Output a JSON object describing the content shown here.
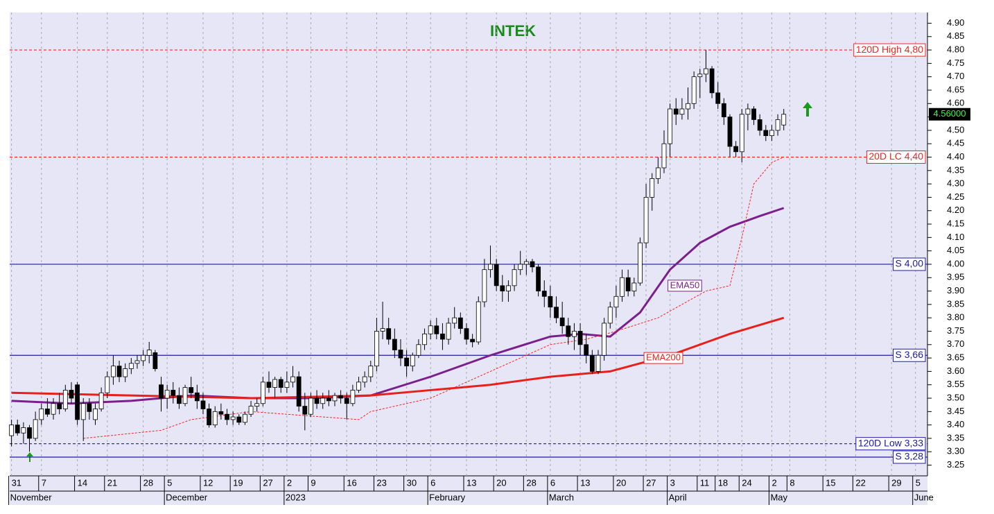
{
  "chart_data": {
    "type": "candlestick",
    "title": "INTEK",
    "ylim": [
      3.21,
      4.94
    ],
    "yticks": [
      {
        "value": 3.25,
        "label": "3.25"
      },
      {
        "value": 3.3,
        "label": "3.30"
      },
      {
        "value": 3.35,
        "label": "3.35"
      },
      {
        "value": 3.4,
        "label": "3.40"
      },
      {
        "value": 3.45,
        "label": "3.45"
      },
      {
        "value": 3.5,
        "label": "3.50"
      },
      {
        "value": 3.55,
        "label": "3.55"
      },
      {
        "value": 3.6,
        "label": "3.60"
      },
      {
        "value": 3.65,
        "label": "3.65"
      },
      {
        "value": 3.7,
        "label": "3.70"
      },
      {
        "value": 3.75,
        "label": "3.75"
      },
      {
        "value": 3.8,
        "label": "3.80"
      },
      {
        "value": 3.85,
        "label": "3.85"
      },
      {
        "value": 3.9,
        "label": "3.90"
      },
      {
        "value": 3.95,
        "label": "3.95"
      },
      {
        "value": 4.0,
        "label": "4.00"
      },
      {
        "value": 4.05,
        "label": "4.05"
      },
      {
        "value": 4.1,
        "label": "4.10"
      },
      {
        "value": 4.15,
        "label": "4.15"
      },
      {
        "value": 4.2,
        "label": "4.20"
      },
      {
        "value": 4.25,
        "label": "4.25"
      },
      {
        "value": 4.3,
        "label": "4.30"
      },
      {
        "value": 4.35,
        "label": "4.35"
      },
      {
        "value": 4.4,
        "label": "4.40"
      },
      {
        "value": 4.45,
        "label": "4.45"
      },
      {
        "value": 4.5,
        "label": "4.50"
      },
      {
        "value": 4.55,
        "label": "4.55"
      },
      {
        "value": 4.6,
        "label": "4.60"
      },
      {
        "value": 4.65,
        "label": "4.65"
      },
      {
        "value": 4.7,
        "label": "4.70"
      },
      {
        "value": 4.75,
        "label": "4.75"
      },
      {
        "value": 4.8,
        "label": "4.80"
      },
      {
        "value": 4.85,
        "label": "4.85"
      },
      {
        "value": 4.9,
        "label": "4.90"
      }
    ],
    "xlim": [
      -0.3,
      153
    ],
    "xticks": [
      {
        "value": 0,
        "label": "31"
      },
      {
        "value": 5,
        "label": "7"
      },
      {
        "value": 11,
        "label": "14"
      },
      {
        "value": 16,
        "label": "21"
      },
      {
        "value": 22,
        "label": "28"
      },
      {
        "value": 26,
        "label": "5"
      },
      {
        "value": 32,
        "label": "12"
      },
      {
        "value": 37,
        "label": "19"
      },
      {
        "value": 42,
        "label": "27"
      },
      {
        "value": 46,
        "label": "2"
      },
      {
        "value": 50,
        "label": "9"
      },
      {
        "value": 56,
        "label": "16"
      },
      {
        "value": 61,
        "label": "23"
      },
      {
        "value": 66,
        "label": "30"
      },
      {
        "value": 70,
        "label": "6"
      },
      {
        "value": 76,
        "label": "13"
      },
      {
        "value": 81,
        "label": "20"
      },
      {
        "value": 86,
        "label": "28"
      },
      {
        "value": 90,
        "label": "6"
      },
      {
        "value": 95,
        "label": "13"
      },
      {
        "value": 101,
        "label": "20"
      },
      {
        "value": 106,
        "label": "27"
      },
      {
        "value": 110,
        "label": "3"
      },
      {
        "value": 115,
        "label": "11"
      },
      {
        "value": 118,
        "label": "18"
      },
      {
        "value": 122,
        "label": "24"
      },
      {
        "value": 127,
        "label": "2"
      },
      {
        "value": 130,
        "label": "8"
      },
      {
        "value": 136,
        "label": "15"
      },
      {
        "value": 141,
        "label": "22"
      },
      {
        "value": 147,
        "label": "29"
      },
      {
        "value": 151,
        "label": "5"
      }
    ],
    "month_ticks": [
      {
        "value": 0,
        "label": "November"
      },
      {
        "value": 26,
        "label": "December"
      },
      {
        "value": 46,
        "label": "2023"
      },
      {
        "value": 70,
        "label": "February"
      },
      {
        "value": 90,
        "label": "March"
      },
      {
        "value": 110,
        "label": "April"
      },
      {
        "value": 127,
        "label": "May"
      },
      {
        "value": 151,
        "label": "June"
      }
    ],
    "ohlc": [
      [
        3.36,
        3.42,
        3.32,
        3.4
      ],
      [
        3.4,
        3.42,
        3.36,
        3.37
      ],
      [
        3.37,
        3.41,
        3.33,
        3.39
      ],
      [
        3.39,
        3.4,
        3.3,
        3.35
      ],
      [
        3.35,
        3.45,
        3.34,
        3.42
      ],
      [
        3.42,
        3.48,
        3.4,
        3.46
      ],
      [
        3.46,
        3.5,
        3.43,
        3.44
      ],
      [
        3.44,
        3.5,
        3.42,
        3.48
      ],
      [
        3.48,
        3.52,
        3.44,
        3.46
      ],
      [
        3.46,
        3.55,
        3.45,
        3.53
      ],
      [
        3.53,
        3.56,
        3.48,
        3.5
      ],
      [
        3.55,
        3.56,
        3.4,
        3.42
      ],
      [
        3.42,
        3.5,
        3.34,
        3.48
      ],
      [
        3.48,
        3.5,
        3.42,
        3.45
      ],
      [
        3.42,
        3.48,
        3.4,
        3.46
      ],
      [
        3.46,
        3.54,
        3.45,
        3.52
      ],
      [
        3.52,
        3.6,
        3.5,
        3.58
      ],
      [
        3.58,
        3.66,
        3.55,
        3.62
      ],
      [
        3.62,
        3.64,
        3.56,
        3.58
      ],
      [
        3.58,
        3.63,
        3.56,
        3.61
      ],
      [
        3.61,
        3.65,
        3.59,
        3.63
      ],
      [
        3.63,
        3.66,
        3.61,
        3.64
      ],
      [
        3.64,
        3.68,
        3.62,
        3.66
      ],
      [
        3.66,
        3.71,
        3.63,
        3.68
      ],
      [
        3.67,
        3.68,
        3.6,
        3.61
      ],
      [
        3.55,
        3.58,
        3.45,
        3.5
      ],
      [
        3.5,
        3.55,
        3.46,
        3.53
      ],
      [
        3.53,
        3.56,
        3.48,
        3.51
      ],
      [
        3.51,
        3.54,
        3.46,
        3.48
      ],
      [
        3.48,
        3.55,
        3.47,
        3.54
      ],
      [
        3.54,
        3.58,
        3.5,
        3.52
      ],
      [
        3.52,
        3.55,
        3.46,
        3.49
      ],
      [
        3.49,
        3.52,
        3.44,
        3.46
      ],
      [
        3.46,
        3.48,
        3.39,
        3.4
      ],
      [
        3.4,
        3.47,
        3.39,
        3.45
      ],
      [
        3.45,
        3.48,
        3.42,
        3.44
      ],
      [
        3.44,
        3.46,
        3.4,
        3.42
      ],
      [
        3.42,
        3.45,
        3.4,
        3.43
      ],
      [
        3.43,
        3.44,
        3.4,
        3.41
      ],
      [
        3.41,
        3.45,
        3.4,
        3.44
      ],
      [
        3.44,
        3.49,
        3.43,
        3.47
      ],
      [
        3.47,
        3.5,
        3.45,
        3.48
      ],
      [
        3.48,
        3.58,
        3.47,
        3.56
      ],
      [
        3.56,
        3.6,
        3.52,
        3.54
      ],
      [
        3.54,
        3.58,
        3.5,
        3.57
      ],
      [
        3.57,
        3.58,
        3.52,
        3.54
      ],
      [
        3.54,
        3.6,
        3.52,
        3.56
      ],
      [
        3.56,
        3.62,
        3.54,
        3.58
      ],
      [
        3.58,
        3.6,
        3.45,
        3.47
      ],
      [
        3.47,
        3.52,
        3.38,
        3.44
      ],
      [
        3.44,
        3.52,
        3.43,
        3.5
      ],
      [
        3.5,
        3.53,
        3.46,
        3.48
      ],
      [
        3.48,
        3.52,
        3.46,
        3.5
      ],
      [
        3.5,
        3.53,
        3.47,
        3.49
      ],
      [
        3.49,
        3.52,
        3.47,
        3.51
      ],
      [
        3.51,
        3.53,
        3.48,
        3.5
      ],
      [
        3.5,
        3.52,
        3.42,
        3.48
      ],
      [
        3.48,
        3.55,
        3.47,
        3.53
      ],
      [
        3.53,
        3.58,
        3.52,
        3.56
      ],
      [
        3.56,
        3.6,
        3.54,
        3.58
      ],
      [
        3.58,
        3.64,
        3.56,
        3.62
      ],
      [
        3.62,
        3.8,
        3.6,
        3.75
      ],
      [
        3.75,
        3.86,
        3.72,
        3.76
      ],
      [
        3.76,
        3.8,
        3.7,
        3.72
      ],
      [
        3.72,
        3.76,
        3.65,
        3.68
      ],
      [
        3.68,
        3.72,
        3.62,
        3.65
      ],
      [
        3.65,
        3.68,
        3.58,
        3.62
      ],
      [
        3.62,
        3.67,
        3.6,
        3.66
      ],
      [
        3.66,
        3.72,
        3.65,
        3.7
      ],
      [
        3.7,
        3.76,
        3.68,
        3.74
      ],
      [
        3.74,
        3.79,
        3.72,
        3.77
      ],
      [
        3.77,
        3.8,
        3.72,
        3.74
      ],
      [
        3.74,
        3.78,
        3.68,
        3.72
      ],
      [
        3.72,
        3.8,
        3.7,
        3.78
      ],
      [
        3.78,
        3.84,
        3.76,
        3.8
      ],
      [
        3.8,
        3.82,
        3.74,
        3.76
      ],
      [
        3.76,
        3.78,
        3.7,
        3.72
      ],
      [
        3.72,
        3.74,
        3.69,
        3.71
      ],
      [
        3.71,
        3.88,
        3.7,
        3.86
      ],
      [
        3.86,
        4.02,
        3.84,
        3.98
      ],
      [
        3.98,
        4.07,
        3.95,
        4.0
      ],
      [
        4.0,
        4.02,
        3.9,
        3.92
      ],
      [
        3.92,
        3.96,
        3.86,
        3.9
      ],
      [
        3.9,
        3.94,
        3.86,
        3.92
      ],
      [
        3.92,
        4.0,
        3.9,
        3.98
      ],
      [
        3.98,
        4.05,
        3.96,
        4.0
      ],
      [
        4.0,
        4.02,
        3.96,
        4.01
      ],
      [
        4.01,
        4.02,
        3.97,
        3.99
      ],
      [
        3.99,
        4.0,
        3.88,
        3.9
      ],
      [
        3.9,
        3.94,
        3.84,
        3.88
      ],
      [
        3.88,
        3.92,
        3.8,
        3.84
      ],
      [
        3.84,
        3.88,
        3.78,
        3.8
      ],
      [
        3.8,
        3.86,
        3.74,
        3.77
      ],
      [
        3.77,
        3.8,
        3.7,
        3.73
      ],
      [
        3.73,
        3.78,
        3.68,
        3.75
      ],
      [
        3.75,
        3.78,
        3.66,
        3.7
      ],
      [
        3.7,
        3.74,
        3.63,
        3.66
      ],
      [
        3.66,
        3.68,
        3.59,
        3.6
      ],
      [
        3.6,
        3.68,
        3.59,
        3.66
      ],
      [
        3.66,
        3.8,
        3.64,
        3.78
      ],
      [
        3.78,
        3.86,
        3.76,
        3.84
      ],
      [
        3.84,
        3.92,
        3.8,
        3.88
      ],
      [
        3.88,
        3.98,
        3.86,
        3.95
      ],
      [
        3.95,
        3.98,
        3.88,
        3.9
      ],
      [
        3.9,
        3.95,
        3.88,
        3.93
      ],
      [
        3.93,
        4.1,
        3.92,
        4.08
      ],
      [
        4.08,
        4.3,
        4.06,
        4.25
      ],
      [
        4.25,
        4.34,
        4.2,
        4.32
      ],
      [
        4.32,
        4.4,
        4.3,
        4.36
      ],
      [
        4.36,
        4.5,
        4.34,
        4.45
      ],
      [
        4.45,
        4.6,
        4.4,
        4.58
      ],
      [
        4.58,
        4.62,
        4.52,
        4.56
      ],
      [
        4.56,
        4.62,
        4.54,
        4.58
      ],
      [
        4.58,
        4.66,
        4.54,
        4.6
      ],
      [
        4.6,
        4.72,
        4.58,
        4.7
      ],
      [
        4.7,
        4.73,
        4.62,
        4.71
      ],
      [
        4.71,
        4.8,
        4.68,
        4.73
      ],
      [
        4.73,
        4.74,
        4.62,
        4.64
      ],
      [
        4.64,
        4.68,
        4.58,
        4.6
      ],
      [
        4.6,
        4.62,
        4.52,
        4.55
      ],
      [
        4.55,
        4.56,
        4.4,
        4.44
      ],
      [
        4.44,
        4.46,
        4.4,
        4.42
      ],
      [
        4.42,
        4.58,
        4.38,
        4.56
      ],
      [
        4.56,
        4.6,
        4.5,
        4.58
      ],
      [
        4.58,
        4.59,
        4.52,
        4.54
      ],
      [
        4.54,
        4.56,
        4.48,
        4.5
      ],
      [
        4.5,
        4.52,
        4.46,
        4.48
      ],
      [
        4.48,
        4.52,
        4.46,
        4.5
      ],
      [
        4.5,
        4.56,
        4.48,
        4.54
      ],
      [
        4.52,
        4.58,
        4.5,
        4.56
      ]
    ],
    "series": [
      {
        "name": "EMA50",
        "color": "#7a1f8c",
        "width": 3,
        "x": [
          0,
          10,
          20,
          30,
          40,
          50,
          60,
          70,
          80,
          90,
          95,
          100,
          105,
          110,
          115,
          120,
          125,
          129
        ],
        "values": [
          3.49,
          3.48,
          3.49,
          3.51,
          3.5,
          3.5,
          3.51,
          3.58,
          3.66,
          3.73,
          3.74,
          3.73,
          3.82,
          3.98,
          4.08,
          4.14,
          4.18,
          4.21
        ]
      },
      {
        "name": "EMA200",
        "color": "#e8201a",
        "width": 3,
        "x": [
          0,
          20,
          40,
          60,
          70,
          80,
          90,
          100,
          110,
          120,
          129
        ],
        "values": [
          3.52,
          3.51,
          3.5,
          3.51,
          3.53,
          3.55,
          3.58,
          3.6,
          3.66,
          3.74,
          3.8
        ]
      },
      {
        "color": "#ff2020",
        "width": 1,
        "dash": "3,2",
        "x": [
          12,
          25,
          30,
          40,
          58,
          60,
          70,
          75,
          80,
          85,
          90,
          96,
          101,
          108,
          112,
          116,
          120,
          122,
          124,
          127,
          129
        ],
        "values": [
          3.35,
          3.38,
          3.42,
          3.45,
          3.42,
          3.45,
          3.5,
          3.55,
          3.6,
          3.65,
          3.7,
          3.72,
          3.75,
          3.8,
          3.85,
          3.9,
          3.92,
          4.1,
          4.3,
          4.38,
          4.4
        ]
      }
    ],
    "series_labels": [
      {
        "label": "EMA50",
        "value": 3.92,
        "x": 110,
        "color": "#7a1f8c"
      },
      {
        "label": "EMA200",
        "value": 3.65,
        "x": 106,
        "color": "#e8201a"
      }
    ],
    "levels": [
      {
        "label": "120D High 4,80",
        "value": 4.8,
        "color": "#ff2020",
        "dash": "4,3"
      },
      {
        "label": "20D LC 4,40",
        "value": 4.4,
        "color": "#ff2020",
        "dash": "4,3"
      },
      {
        "label": "S 4,00",
        "value": 4.0,
        "color": "#1a1aa8",
        "dash": ""
      },
      {
        "label": "S 3,66",
        "value": 3.66,
        "color": "#1a1aa8",
        "dash": ""
      },
      {
        "label": "120D Low 3,33",
        "value": 3.33,
        "color": "#1a1aa8",
        "dash": "4,3"
      },
      {
        "label": "S 3,28",
        "value": 3.28,
        "color": "#1a1aa8",
        "dash": ""
      }
    ],
    "last_price": {
      "value": 4.56,
      "label": "4.56000"
    }
  }
}
